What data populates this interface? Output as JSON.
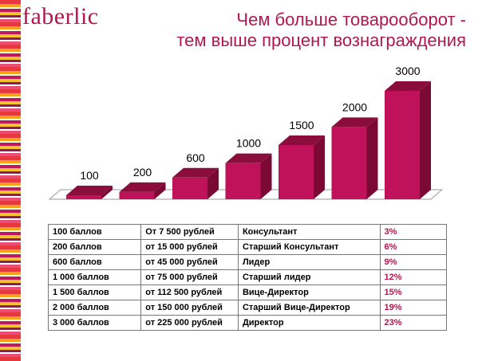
{
  "logo": "faberlic",
  "title": {
    "line1": "Чем больше товарооборот -",
    "line2": "тем выше процент вознаграждения"
  },
  "colors": {
    "brand": "#b0174e",
    "bar_front": "#c0125a",
    "bar_side": "#7a0a34",
    "bar_top": "#8a0d3c"
  },
  "chart_data": {
    "type": "bar",
    "categories": [
      "100",
      "200",
      "600",
      "1000",
      "1500",
      "2000",
      "3000"
    ],
    "values": [
      100,
      200,
      600,
      1000,
      1500,
      2000,
      3000
    ],
    "data_labels": [
      "100",
      "200",
      "600",
      "1000",
      "1500",
      "2000",
      "3000"
    ],
    "three_d": true,
    "title": "",
    "xlabel": "",
    "ylabel": "",
    "grid": false
  },
  "table": {
    "rows": [
      [
        "100 баллов",
        "От 7 500 рублей",
        "Консультант",
        "3%"
      ],
      [
        "200 баллов",
        "от 15 000 рублей",
        "Старший Консультант",
        "6%"
      ],
      [
        "600 баллов",
        "от 45 000 рублей",
        "Лидер",
        "9%"
      ],
      [
        "1 000 баллов",
        "от 75 000 рублей",
        "Старший лидер",
        "12%"
      ],
      [
        "1 500 баллов",
        "от 112 500 рублей",
        "Вице-Директор",
        "15%"
      ],
      [
        "2 000 баллов",
        "от 150 000 рублей",
        "Старший Вице-Директор",
        "19%"
      ],
      [
        "3 000 баллов",
        "от 225 000 рублей",
        "Директор",
        "23%"
      ]
    ]
  }
}
